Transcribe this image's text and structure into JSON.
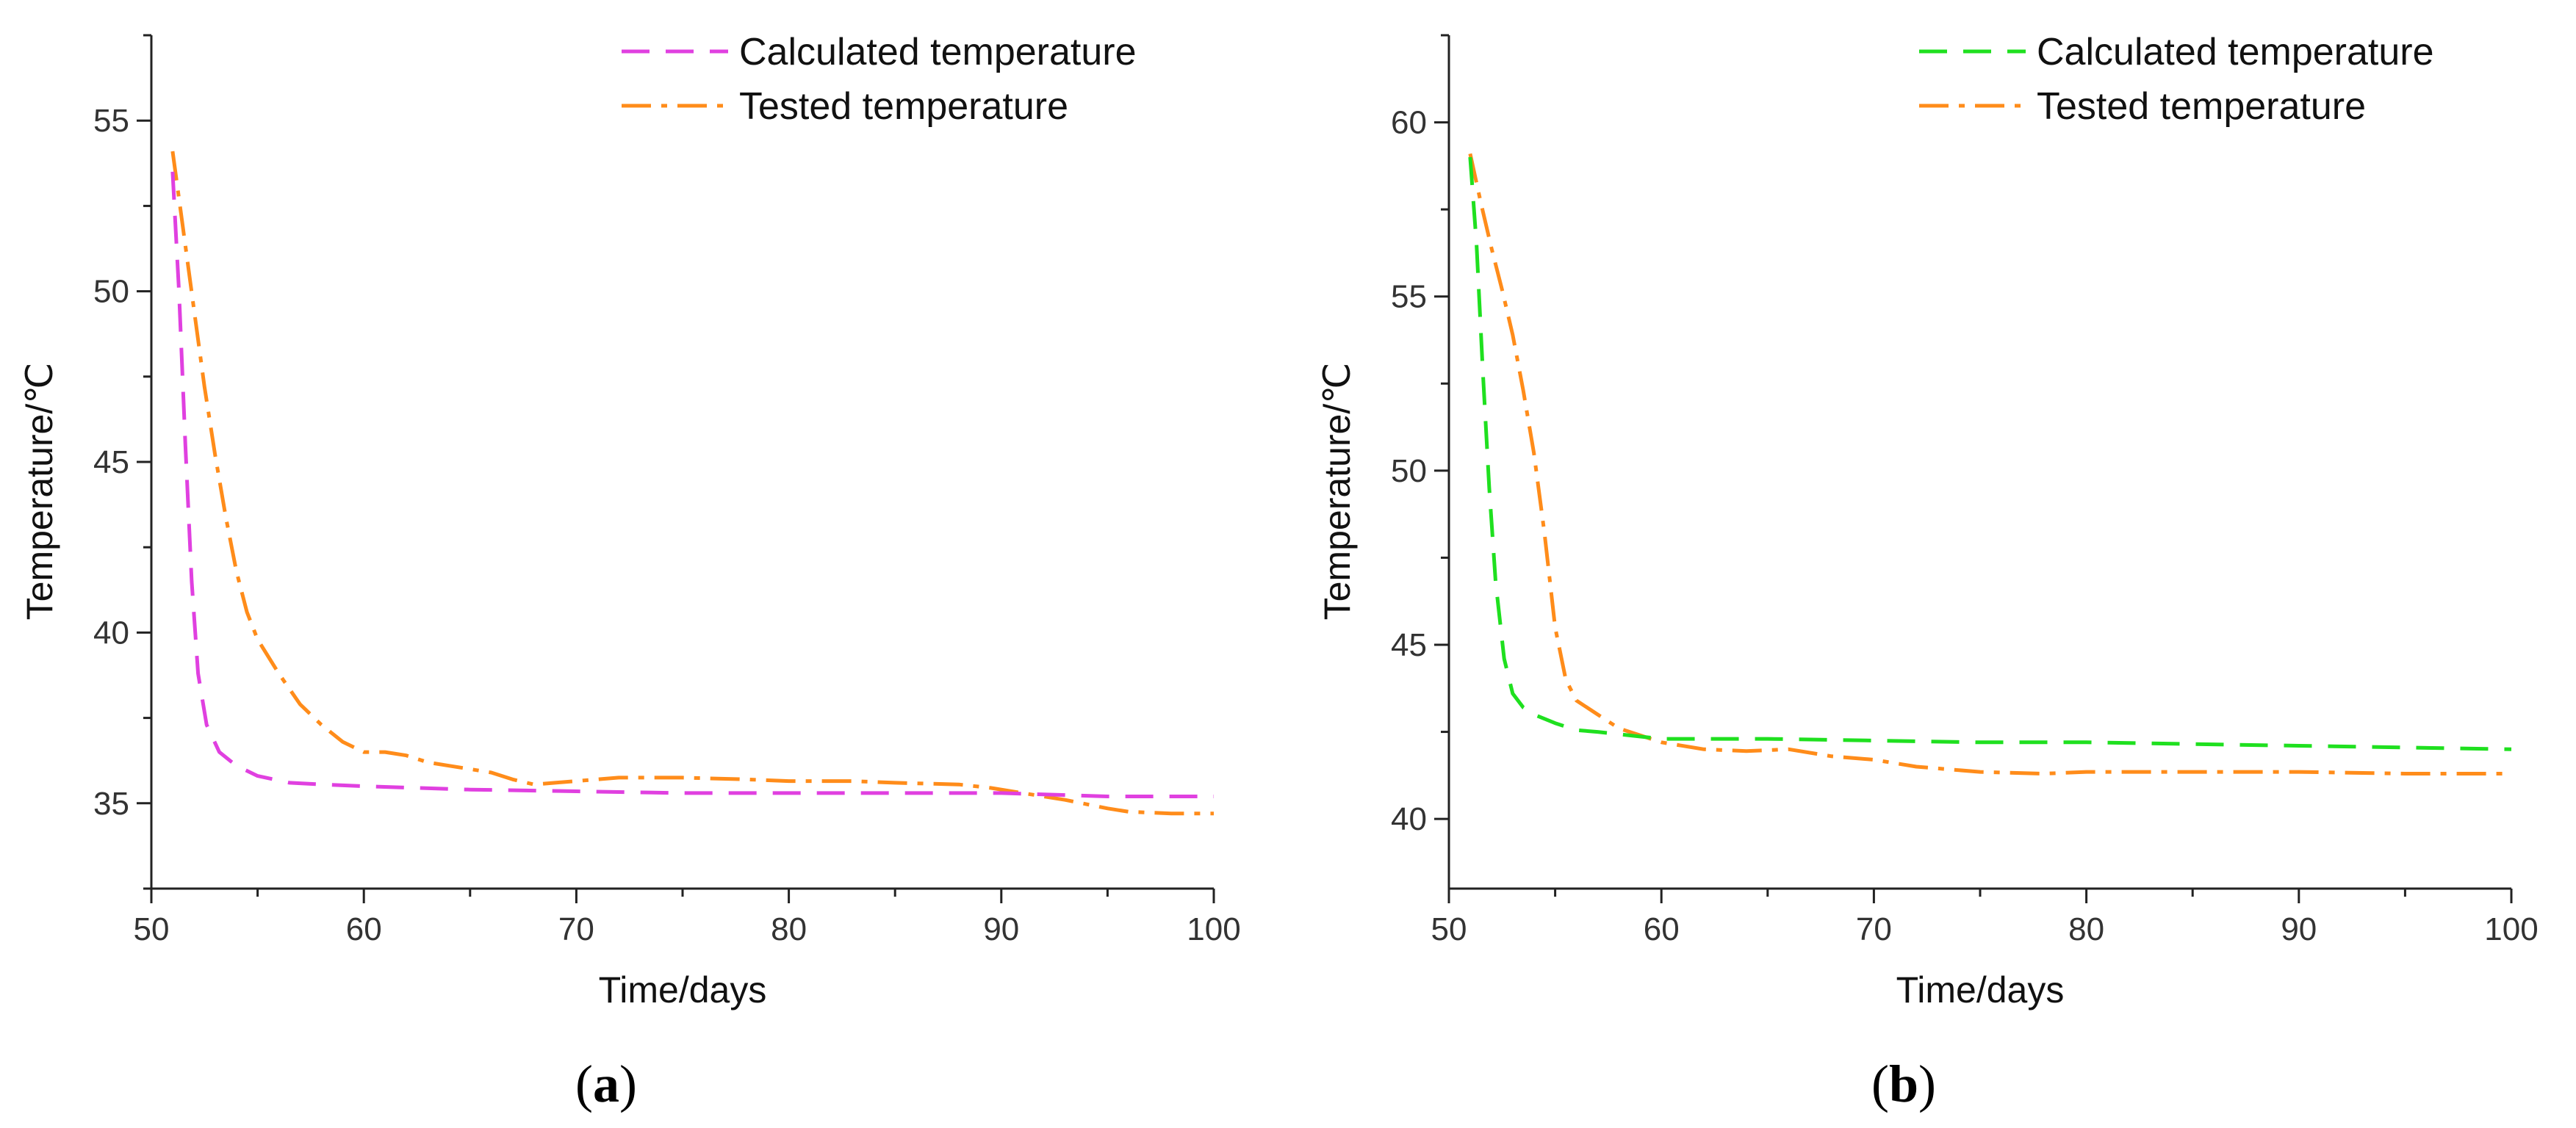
{
  "chart_data": [
    {
      "id": "a",
      "type": "line",
      "panel_label": "a",
      "xlabel": "Time/days",
      "ylabel": "Temperature/℃",
      "xlim": [
        50,
        100
      ],
      "ylim": [
        32.5,
        57.5
      ],
      "xticks": [
        50,
        60,
        70,
        80,
        90,
        100
      ],
      "yticks": [
        35,
        40,
        45,
        50,
        55
      ],
      "legend_position": "top-right",
      "series": [
        {
          "name": "Calculated temperature",
          "color": "#e040e0",
          "style": "dash",
          "points": [
            [
              51.0,
              53.5
            ],
            [
              51.3,
              50.0
            ],
            [
              51.6,
              45.5
            ],
            [
              51.9,
              41.5
            ],
            [
              52.2,
              38.8
            ],
            [
              52.6,
              37.3
            ],
            [
              53.2,
              36.5
            ],
            [
              54.0,
              36.1
            ],
            [
              55.0,
              35.8
            ],
            [
              56.5,
              35.6
            ],
            [
              58.0,
              35.55
            ],
            [
              60.0,
              35.5
            ],
            [
              65.0,
              35.4
            ],
            [
              70.0,
              35.35
            ],
            [
              75.0,
              35.3
            ],
            [
              80.0,
              35.3
            ],
            [
              85.0,
              35.3
            ],
            [
              90.0,
              35.3
            ],
            [
              95.0,
              35.2
            ],
            [
              100.0,
              35.2
            ]
          ]
        },
        {
          "name": "Tested temperature",
          "color": "#ff8c1a",
          "style": "dashdot",
          "points": [
            [
              51.0,
              54.1
            ],
            [
              51.5,
              51.8
            ],
            [
              52.0,
              49.5
            ],
            [
              52.5,
              47.2
            ],
            [
              53.0,
              45.2
            ],
            [
              53.5,
              43.4
            ],
            [
              54.0,
              41.8
            ],
            [
              54.5,
              40.6
            ],
            [
              55.0,
              39.8
            ],
            [
              56.0,
              38.8
            ],
            [
              57.0,
              37.9
            ],
            [
              58.0,
              37.3
            ],
            [
              59.0,
              36.8
            ],
            [
              60.0,
              36.5
            ],
            [
              61.0,
              36.5
            ],
            [
              62.0,
              36.4
            ],
            [
              63.0,
              36.2
            ],
            [
              64.0,
              36.1
            ],
            [
              65.0,
              36.0
            ],
            [
              66.0,
              35.9
            ],
            [
              67.0,
              35.7
            ],
            [
              68.0,
              35.55
            ],
            [
              69.0,
              35.6
            ],
            [
              70.0,
              35.65
            ],
            [
              72.0,
              35.75
            ],
            [
              75.0,
              35.75
            ],
            [
              78.0,
              35.7
            ],
            [
              80.0,
              35.65
            ],
            [
              83.0,
              35.65
            ],
            [
              85.0,
              35.6
            ],
            [
              88.0,
              35.55
            ],
            [
              89.5,
              35.45
            ],
            [
              91.0,
              35.3
            ],
            [
              93.0,
              35.1
            ],
            [
              95.0,
              34.85
            ],
            [
              96.0,
              34.75
            ],
            [
              98.0,
              34.7
            ],
            [
              100.0,
              34.7
            ]
          ]
        }
      ]
    },
    {
      "id": "b",
      "type": "line",
      "panel_label": "b",
      "xlabel": "Time/days",
      "ylabel": "Temperature/℃",
      "xlim": [
        50,
        100
      ],
      "ylim": [
        38,
        62.5
      ],
      "xticks": [
        50,
        60,
        70,
        80,
        90,
        100
      ],
      "yticks": [
        40,
        45,
        50,
        55,
        60
      ],
      "legend_position": "top-right",
      "series": [
        {
          "name": "Calculated temperature",
          "color": "#1fe01f",
          "style": "dash",
          "points": [
            [
              51.0,
              59.0
            ],
            [
              51.3,
              56.5
            ],
            [
              51.6,
              52.8
            ],
            [
              51.9,
              49.5
            ],
            [
              52.2,
              46.8
            ],
            [
              52.6,
              44.6
            ],
            [
              53.0,
              43.6
            ],
            [
              53.5,
              43.2
            ],
            [
              54.0,
              43.0
            ],
            [
              55.0,
              42.75
            ],
            [
              56.0,
              42.55
            ],
            [
              57.0,
              42.5
            ],
            [
              60.0,
              42.3
            ],
            [
              65.0,
              42.3
            ],
            [
              70.0,
              42.25
            ],
            [
              75.0,
              42.2
            ],
            [
              80.0,
              42.2
            ],
            [
              85.0,
              42.15
            ],
            [
              90.0,
              42.1
            ],
            [
              95.0,
              42.05
            ],
            [
              100.0,
              42.0
            ]
          ]
        },
        {
          "name": "Tested temperature",
          "color": "#ff8c1a",
          "style": "dashdot",
          "points": [
            [
              51.0,
              59.1
            ],
            [
              51.5,
              57.7
            ],
            [
              52.0,
              56.4
            ],
            [
              52.5,
              55.2
            ],
            [
              53.0,
              53.9
            ],
            [
              53.5,
              52.3
            ],
            [
              54.0,
              50.5
            ],
            [
              54.5,
              48.2
            ],
            [
              55.0,
              45.5
            ],
            [
              55.5,
              44.0
            ],
            [
              56.0,
              43.4
            ],
            [
              57.0,
              43.0
            ],
            [
              58.0,
              42.6
            ],
            [
              59.0,
              42.4
            ],
            [
              60.0,
              42.2
            ],
            [
              62.0,
              42.0
            ],
            [
              64.0,
              41.95
            ],
            [
              66.0,
              42.0
            ],
            [
              68.0,
              41.8
            ],
            [
              70.0,
              41.7
            ],
            [
              72.0,
              41.5
            ],
            [
              75.0,
              41.35
            ],
            [
              78.0,
              41.3
            ],
            [
              80.0,
              41.35
            ],
            [
              85.0,
              41.35
            ],
            [
              90.0,
              41.35
            ],
            [
              95.0,
              41.3
            ],
            [
              100.0,
              41.3
            ]
          ]
        }
      ]
    }
  ]
}
